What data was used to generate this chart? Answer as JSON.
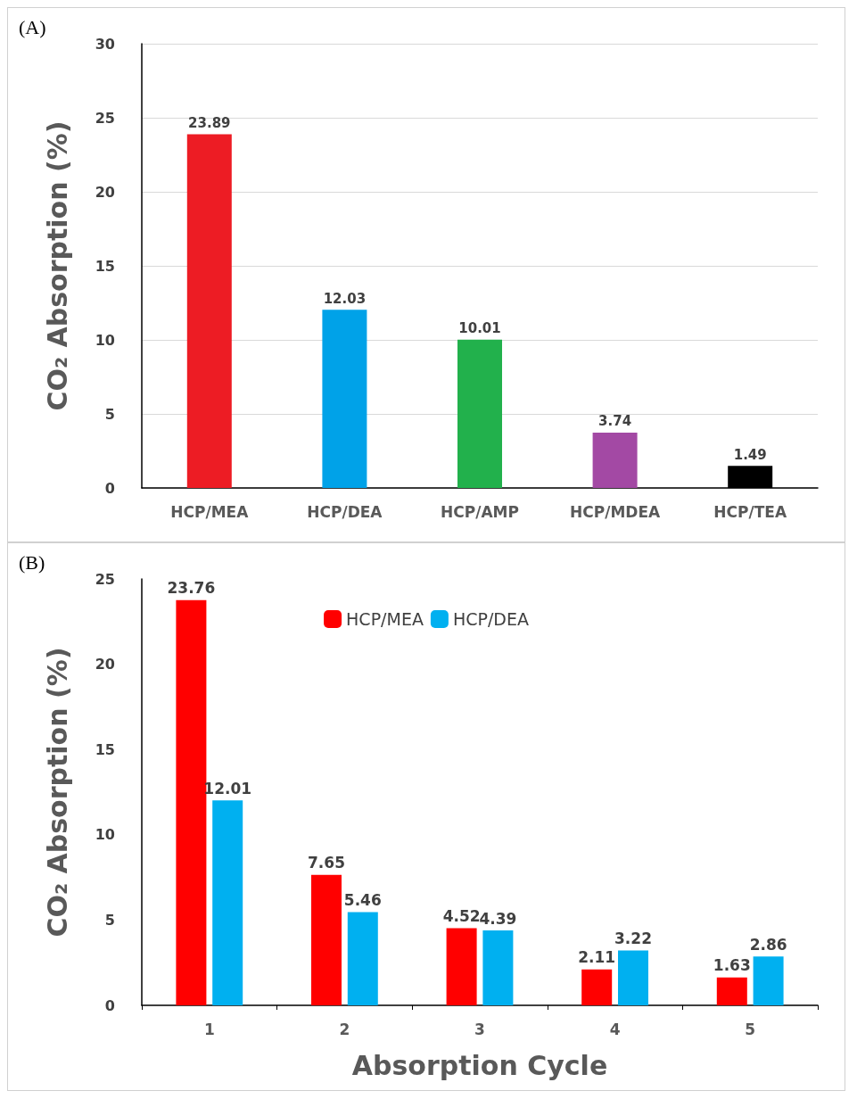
{
  "chart_data": [
    {
      "type": "bar",
      "ylabel": "CO₂ Absorption (%)",
      "annotations": [
        "(A)"
      ],
      "categories": [
        "HCP/MEA",
        "HCP/DEA",
        "HCP/AMP",
        "HCP/MDEA",
        "HCP/TEA"
      ],
      "values": [
        23.89,
        12.03,
        10.01,
        3.74,
        1.49
      ],
      "colors": [
        "#ed1c24",
        "#00a2e8",
        "#22b14c",
        "#a349a4",
        "#000000"
      ],
      "ylim": [
        0,
        30
      ],
      "yticks": [
        0,
        5,
        10,
        15,
        20,
        25,
        30
      ],
      "grid": "y",
      "data_labels": true,
      "legend": false
    },
    {
      "type": "bar",
      "ylabel": "CO₂ Absorption (%)",
      "xlabel": "Absorption Cycle",
      "annotations": [
        "(B)"
      ],
      "categories": [
        "1",
        "2",
        "3",
        "4",
        "5"
      ],
      "series": [
        {
          "name": "HCP/MEA",
          "color": "#ff0000",
          "values": [
            23.76,
            7.65,
            4.52,
            2.11,
            1.63
          ]
        },
        {
          "name": "HCP/DEA",
          "color": "#00b0f0",
          "values": [
            12.01,
            5.46,
            4.39,
            3.22,
            2.86
          ]
        }
      ],
      "ylim": [
        0,
        25
      ],
      "yticks": [
        0,
        5,
        10,
        15,
        20,
        25
      ],
      "grid": false,
      "data_labels": true,
      "legend": "top"
    }
  ]
}
